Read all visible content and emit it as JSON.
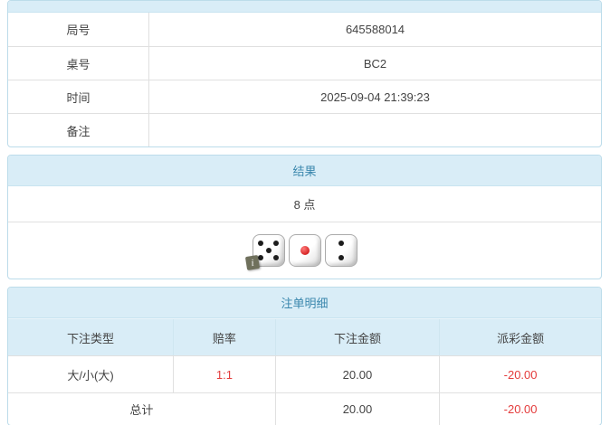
{
  "colors": {
    "accent_bg": "#d9edf7",
    "accent_text": "#3a87ad",
    "negative": "#e43c3c",
    "panel_border": "#bcdcea"
  },
  "game_info": {
    "rows": [
      {
        "label": "局号",
        "value": "645588014"
      },
      {
        "label": "桌号",
        "value": "BC2"
      },
      {
        "label": "时间",
        "value": "2025-09-04 21:39:23"
      },
      {
        "label": "备注",
        "value": ""
      }
    ]
  },
  "result": {
    "title": "结果",
    "points": "8 点",
    "dice": [
      5,
      1,
      2
    ],
    "info_icon": "i"
  },
  "bets": {
    "title": "注单明细",
    "columns": [
      "下注类型",
      "赔率",
      "下注金额",
      "派彩金额"
    ],
    "rows": [
      {
        "type": "大/小(大)",
        "odds": "1:1",
        "amount": "20.00",
        "payout": "-20.00"
      }
    ],
    "total_label": "总计",
    "total_amount": "20.00",
    "total_payout": "-20.00"
  }
}
